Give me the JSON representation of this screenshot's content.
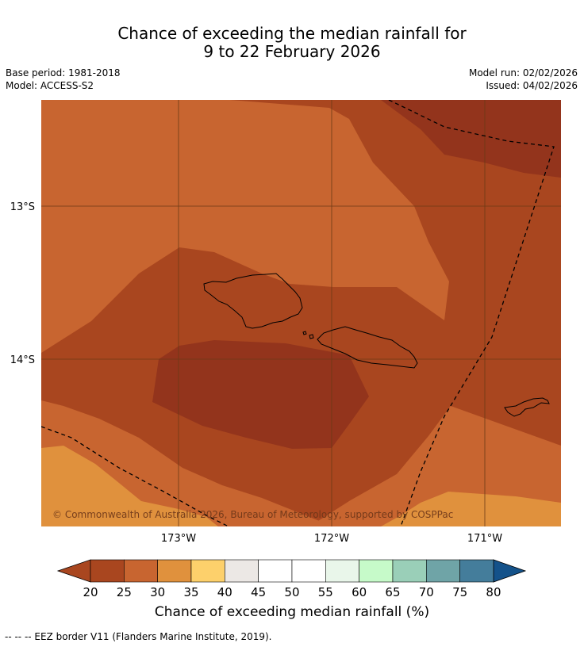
{
  "title_line1": "Chance of exceeding the median rainfall for",
  "title_line2": "9 to 22 February 2026",
  "base_period": "Base period: 1981-2018",
  "model": "Model: ACCESS-S2",
  "model_run": "Model run: 02/02/2026",
  "issued": "Issued: 04/02/2026",
  "map": {
    "lat_labels": [
      "13°S",
      "14°S"
    ],
    "lon_labels": [
      "173°W",
      "172°W",
      "171°W"
    ],
    "copyright": "© Commonwealth of Australia 2026, Bureau of Meteorology, supported by COSPPac",
    "colors": {
      "band_20_25": "#A9461F",
      "band_25_30": "#C86530",
      "band_30_35": "#E0913D",
      "below_20": "#93341C",
      "grid": "#6b3a16",
      "coast": "#000000"
    }
  },
  "colorbar": {
    "ticks": [
      "20",
      "25",
      "30",
      "35",
      "40",
      "45",
      "50",
      "55",
      "60",
      "65",
      "70",
      "75",
      "80"
    ],
    "colors": [
      "#A9461F",
      "#C86530",
      "#E0913D",
      "#FDD06B",
      "#ECE8E5",
      "#FFFFFF",
      "#FFFFFF",
      "#E9F6EA",
      "#C6FAC9",
      "#9ACFB8",
      "#6FA4A7",
      "#447D9B"
    ],
    "under_color": "#A9461F",
    "over_color": "#14528A",
    "label": "Chance of exceeding median rainfall (%)"
  },
  "footnote": "--  --  -- EEZ border V11 (Flanders Marine Institute, 2019)."
}
